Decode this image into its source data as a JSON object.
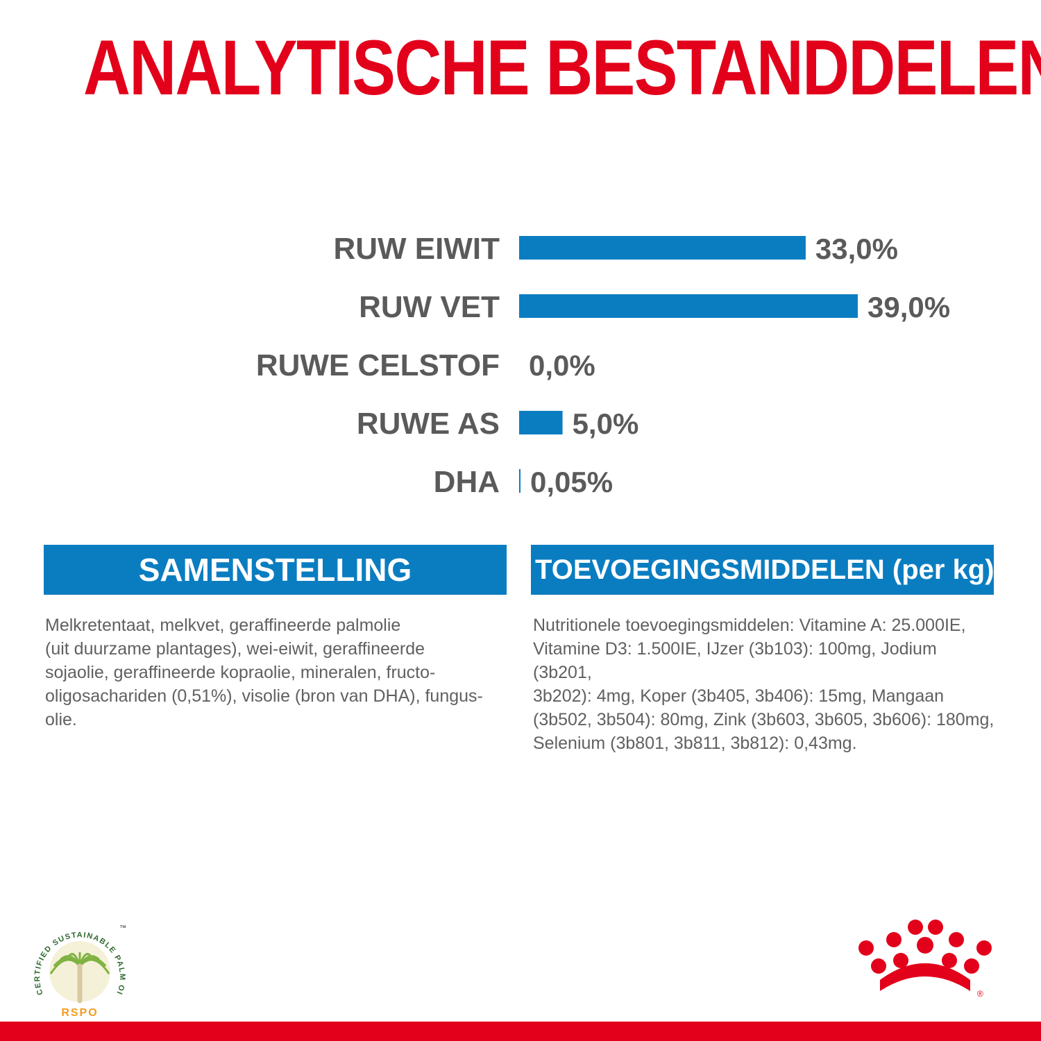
{
  "title": "ANALYTISCHE BESTANDDELEN",
  "colors": {
    "title": "#e2001a",
    "bar": "#0a7dc1",
    "label": "#5a5a5a",
    "header_bg": "#0a7dc1",
    "footer": "#e2001a",
    "rspo_green": "#7fb241",
    "rspo_orange": "#f39c21"
  },
  "chart_data": {
    "type": "bar",
    "orientation": "horizontal",
    "categories": [
      "RUW EIWIT",
      "RUW VET",
      "RUWE CELSTOF",
      "RUWE AS",
      "DHA"
    ],
    "values": [
      33.0,
      39.0,
      0.0,
      5.0,
      0.05
    ],
    "value_labels": [
      "33,0%",
      "39,0%",
      "0,0%",
      "5,0%",
      "0,05%"
    ],
    "xlim": [
      0,
      39
    ],
    "grid": false
  },
  "composition": {
    "header": "SAMENSTELLING",
    "text": "Melkretentaat, melkvet, geraffineerde palmolie\n(uit duurzame plantages), wei-eiwit, geraffineerde\nsojaolie, geraffineerde kopraolie, mineralen, fructo-\noligosachariden (0,51%), visolie (bron van DHA), fungus-olie."
  },
  "additives": {
    "header": "TOEVOEGINGSMIDDELEN (per kg)",
    "text": "Nutritionele toevoegingsmiddelen: Vitamine A: 25.000IE,\nVitamine D3: 1.500IE, IJzer (3b103): 100mg, Jodium (3b201,\n3b202): 4mg, Koper (3b405, 3b406): 15mg, Mangaan\n(3b502, 3b504): 80mg, Zink (3b603, 3b605, 3b606): 180mg,\nSelenium (3b801, 3b811, 3b812): 0,43mg."
  },
  "rspo_logo": {
    "text": "CERTIFIED SUSTAINABLE PALM OIL",
    "trademark": "™",
    "acronym": "RSPO"
  },
  "brand_logo": {
    "icon": "royal-canin-crown-icon",
    "registered": "®"
  }
}
